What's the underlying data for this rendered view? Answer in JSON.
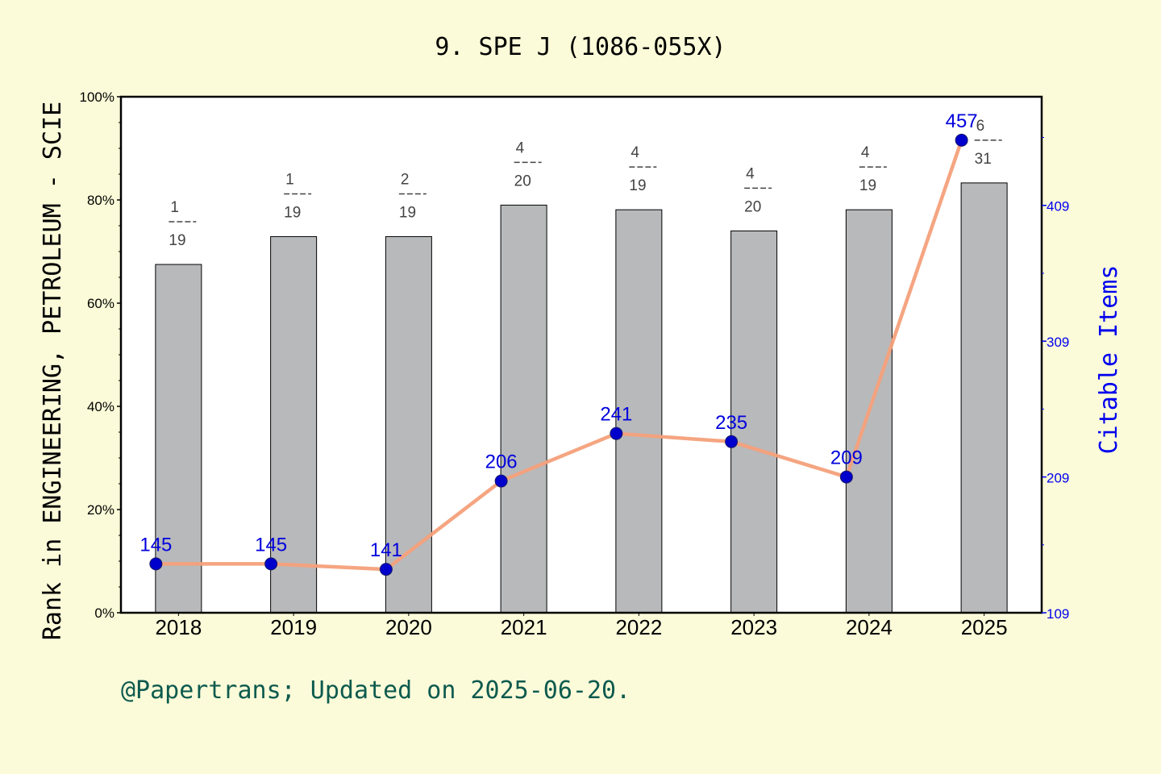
{
  "chart_data": {
    "type": "bar",
    "title": "9. SPE J (1086-055X)",
    "ylabel_left": "Rank in ENGINEERING, PETROLEUM - SCIE",
    "ylabel_right": "Citable Items",
    "footer": "@Papertrans; Updated on 2025-06-20.",
    "categories": [
      "2018",
      "2019",
      "2020",
      "2021",
      "2022",
      "2023",
      "2024",
      "2025"
    ],
    "left_axis": {
      "ylim": [
        0,
        100
      ],
      "ticks": [
        "0%",
        "20%",
        "40%",
        "60%",
        "80%",
        "100%"
      ]
    },
    "right_axis": {
      "ylim": [
        109,
        489
      ],
      "ticks": [
        "109",
        "209",
        "309",
        "409"
      ]
    },
    "series": [
      {
        "type": "bar",
        "values": [
          67.5,
          72.9,
          72.9,
          79.0,
          78.1,
          74.0,
          78.1,
          83.3
        ],
        "rank_labels": [
          {
            "rank": "1",
            "total": "19"
          },
          {
            "rank": "1",
            "total": "19"
          },
          {
            "rank": "2",
            "total": "19"
          },
          {
            "rank": "4",
            "total": "20"
          },
          {
            "rank": "4",
            "total": "19"
          },
          {
            "rank": "4",
            "total": "20"
          },
          {
            "rank": "4",
            "total": "19"
          },
          {
            "rank": "6",
            "total": "31"
          }
        ]
      },
      {
        "type": "line",
        "axis": "right",
        "values": [
          145,
          145,
          141,
          206,
          241,
          235,
          209,
          457
        ],
        "labels": [
          "145",
          "145",
          "141",
          "206",
          "241",
          "235",
          "209",
          "457"
        ]
      }
    ],
    "colors": {
      "background": "#fbfbd9",
      "plot_background": "#ffffff",
      "bar": "#b8b9bb",
      "line": "#f4a07a",
      "marker": "#0000cc",
      "right_axis": "#0000ee",
      "footer": "#0e5a4e"
    }
  }
}
